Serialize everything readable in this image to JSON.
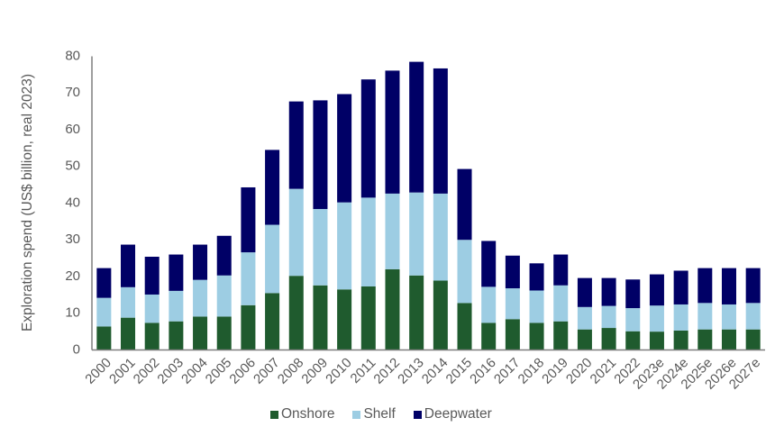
{
  "chart_data": {
    "type": "bar",
    "stacked": true,
    "title": "",
    "xlabel": "",
    "ylabel": "Exploration spend (US$ billion, real 2023)",
    "ylim": [
      0,
      80
    ],
    "yticks": [
      0,
      10,
      20,
      30,
      40,
      50,
      60,
      70,
      80
    ],
    "grid": false,
    "legend_position": "bottom",
    "categories": [
      "2000",
      "2001",
      "2002",
      "2003",
      "2004",
      "2005",
      "2006",
      "2007",
      "2008",
      "2009",
      "2010",
      "2011",
      "2012",
      "2013",
      "2014",
      "2015",
      "2016",
      "2017",
      "2018",
      "2019",
      "2020",
      "2021",
      "2022",
      "2023e",
      "2024e",
      "2025e",
      "2026e",
      "2027e"
    ],
    "series": [
      {
        "name": "Onshore",
        "color": "#1f5b2e",
        "values": [
          6.4,
          8.8,
          7.4,
          7.8,
          9.1,
          9.1,
          12.2,
          15.5,
          20.2,
          17.6,
          16.5,
          17.3,
          22.0,
          20.3,
          18.9,
          12.8,
          7.4,
          8.4,
          7.4,
          7.8,
          5.6,
          6.0,
          5.1,
          5.0,
          5.3,
          5.6,
          5.6,
          5.6
        ]
      },
      {
        "name": "Shelf",
        "color": "#9dcde3",
        "values": [
          7.8,
          8.3,
          7.7,
          8.3,
          10.0,
          11.2,
          14.4,
          18.6,
          23.7,
          20.8,
          23.7,
          24.2,
          20.6,
          22.6,
          23.7,
          17.2,
          9.8,
          8.4,
          8.8,
          9.8,
          6.1,
          6.0,
          6.3,
          7.1,
          7.1,
          7.2,
          6.8,
          7.2
        ]
      },
      {
        "name": "Deepwater",
        "color": "#000066",
        "values": [
          8.1,
          11.6,
          10.3,
          9.9,
          9.6,
          10.8,
          17.7,
          20.4,
          23.8,
          29.6,
          29.5,
          32.2,
          33.5,
          35.6,
          34.1,
          19.3,
          12.5,
          8.9,
          7.4,
          8.4,
          7.9,
          7.6,
          7.8,
          8.5,
          9.2,
          9.5,
          9.9,
          9.5
        ]
      }
    ]
  },
  "legend": {
    "items": [
      {
        "label": "Onshore",
        "color": "#1f5b2e"
      },
      {
        "label": "Shelf",
        "color": "#9dcde3"
      },
      {
        "label": "Deepwater",
        "color": "#000066"
      }
    ]
  },
  "axis": {
    "color": "#7f7f7f"
  }
}
